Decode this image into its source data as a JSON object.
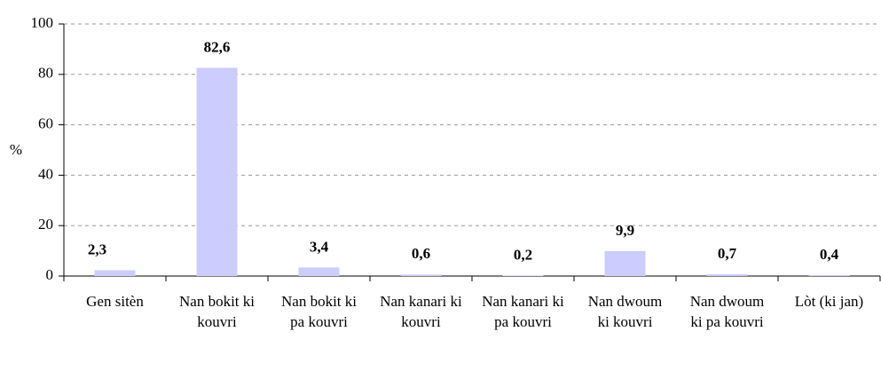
{
  "chart_data": {
    "type": "bar",
    "y_label": "%",
    "categories": [
      "Gen sitèn",
      "Nan bokit ki kouvri",
      "Nan bokit ki pa kouvri",
      "Nan kanari ki kouvri",
      "Nan kanari ki pa kouvri",
      "Nan dwoum ki kouvri",
      "Nan dwoum ki pa kouvri",
      "Lòt (ki jan)"
    ],
    "values": [
      2.3,
      82.6,
      3.4,
      0.6,
      0.2,
      9.9,
      0.7,
      0.4
    ],
    "value_labels": [
      "2,3",
      "82,6",
      "3,4",
      "0,6",
      "0,2",
      "9,9",
      "0,7",
      "0,4"
    ],
    "color": "#ccccff",
    "ylim": [
      0,
      100
    ],
    "yticks": [
      0,
      20,
      40,
      60,
      80,
      100
    ],
    "grid": true
  }
}
